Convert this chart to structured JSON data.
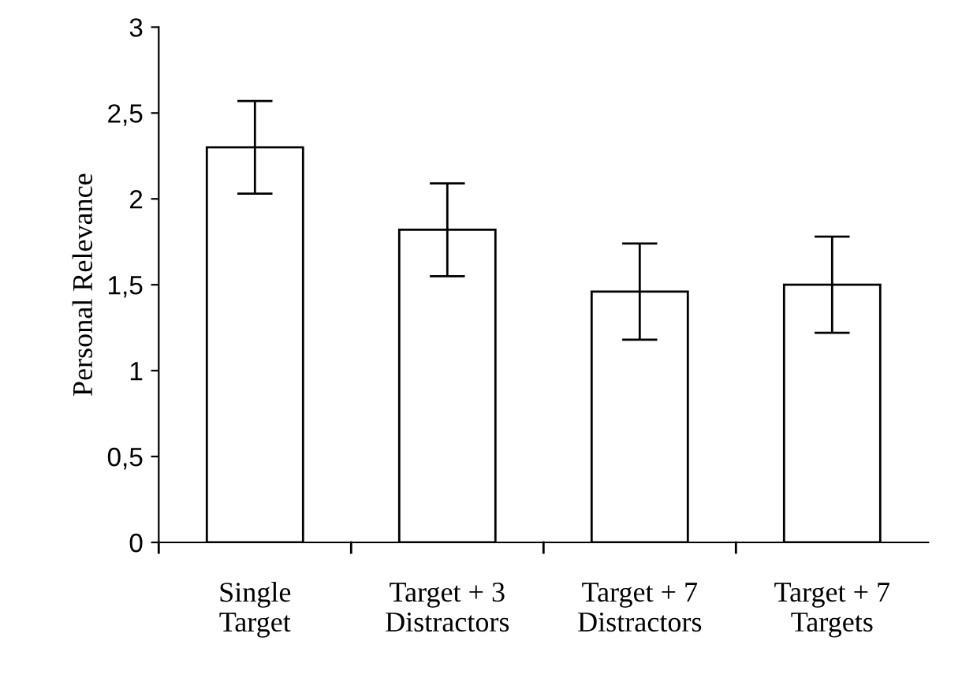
{
  "chart_data": {
    "type": "bar",
    "ylabel": "Personal Relevance",
    "categories": [
      "Single\nTarget",
      "Target + 3\nDistractors",
      "Target + 7\nDistractors",
      "Target + 7\nTargets"
    ],
    "values": [
      2.3,
      1.82,
      1.46,
      1.5
    ],
    "errors": [
      0.27,
      0.27,
      0.28,
      0.28
    ],
    "color": "#ffffff",
    "ylim": [
      0,
      3
    ],
    "yticks": [
      0,
      {
        "value": 0.5,
        "label": "0,5"
      },
      1,
      {
        "value": 1.5,
        "label": "1,5"
      },
      2,
      {
        "value": 2.5,
        "label": "2,5"
      },
      3
    ],
    "grid": false,
    "legend": false
  }
}
